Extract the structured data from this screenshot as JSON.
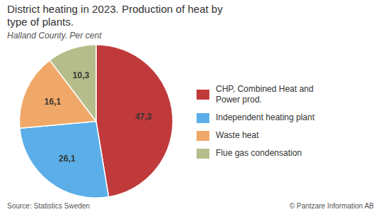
{
  "chart_data": {
    "type": "pie",
    "title": [
      "District heating in 2023. Production of heat by",
      "type of plants."
    ],
    "subtitle": "Halland County. Per cent",
    "categories": [
      "CHP, Combined Heat and\nPower prod.",
      "Independent heating plant",
      "Waste heat",
      "Flue gas condensation"
    ],
    "values": [
      47.3,
      26.1,
      16.1,
      10.3
    ],
    "value_labels": [
      "47,3",
      "26,1",
      "16,1",
      "10,3"
    ],
    "data_labels": true,
    "colors": [
      "#c0393b",
      "#5baee8",
      "#f0a868",
      "#b5be8a"
    ],
    "legend": "right",
    "annotations": [
      "Source: Statistics Sweden",
      "© Pantzare Information AB"
    ]
  }
}
